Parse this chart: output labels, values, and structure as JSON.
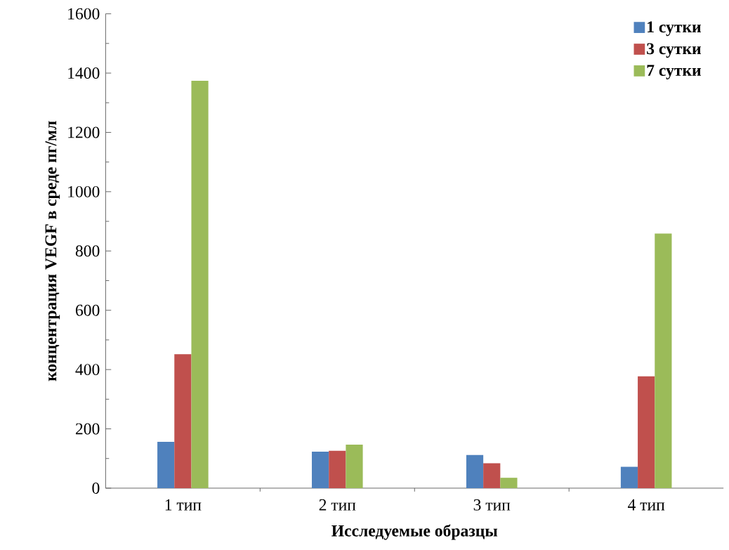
{
  "chart_data": {
    "type": "bar",
    "xlabel": "Исследуемые образцы",
    "ylabel": "концентрация VEGF в среде пг/мл",
    "categories": [
      "1 тип",
      "2 тип",
      "3 тип",
      "4 тип"
    ],
    "series": [
      {
        "name": "1 сутки",
        "color": "#4f81bd",
        "values": [
          156,
          123,
          112,
          72
        ]
      },
      {
        "name": "3 сутки",
        "color": "#c0504d",
        "values": [
          452,
          126,
          84,
          377
        ]
      },
      {
        "name": "7 сутки",
        "color": "#9bbb59",
        "values": [
          1374,
          147,
          35,
          859
        ]
      }
    ],
    "ylim": [
      0,
      1600
    ],
    "yticks": [
      0,
      200,
      400,
      600,
      800,
      1000,
      1200,
      1400,
      1600
    ],
    "grid": false,
    "legend": "top right"
  }
}
